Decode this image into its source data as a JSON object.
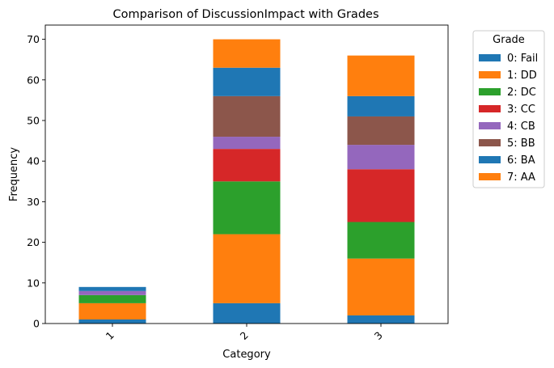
{
  "chart_data": {
    "type": "bar",
    "stacked": true,
    "title": "Comparison of DiscussionImpact with Grades",
    "xlabel": "Category",
    "ylabel": "Frequency",
    "categories": [
      "1",
      "2",
      "3"
    ],
    "ylim": [
      0,
      73.5
    ],
    "yticks": [
      0,
      10,
      20,
      30,
      40,
      50,
      60,
      70
    ],
    "grid": false,
    "legend_title": "Grade",
    "legend_position": "outside-top-right",
    "series": [
      {
        "name": "0: Fail",
        "color": "#1f77b4",
        "values": [
          1,
          5,
          2
        ]
      },
      {
        "name": "1: DD",
        "color": "#ff7f0e",
        "values": [
          4,
          17,
          14
        ]
      },
      {
        "name": "2: DC",
        "color": "#2ca02c",
        "values": [
          2,
          13,
          9
        ]
      },
      {
        "name": "3: CC",
        "color": "#d62728",
        "values": [
          0,
          8,
          13
        ]
      },
      {
        "name": "4: CB",
        "color": "#9467bd",
        "values": [
          1,
          3,
          6
        ]
      },
      {
        "name": "5: BB",
        "color": "#8c564b",
        "values": [
          0,
          10,
          7
        ]
      },
      {
        "name": "6: BA",
        "color": "#1f77b4",
        "values": [
          1,
          7,
          5
        ]
      },
      {
        "name": "7: AA",
        "color": "#ff7f0e",
        "values": [
          0,
          7,
          10
        ]
      }
    ]
  }
}
